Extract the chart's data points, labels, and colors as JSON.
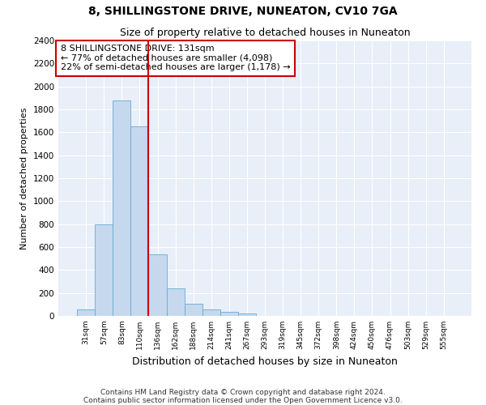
{
  "title": "8, SHILLINGSTONE DRIVE, NUNEATON, CV10 7GA",
  "subtitle": "Size of property relative to detached houses in Nuneaton",
  "xlabel": "Distribution of detached houses by size in Nuneaton",
  "ylabel": "Number of detached properties",
  "categories": [
    "31sqm",
    "57sqm",
    "83sqm",
    "110sqm",
    "136sqm",
    "162sqm",
    "188sqm",
    "214sqm",
    "241sqm",
    "267sqm",
    "293sqm",
    "319sqm",
    "345sqm",
    "372sqm",
    "398sqm",
    "424sqm",
    "450sqm",
    "476sqm",
    "503sqm",
    "529sqm",
    "555sqm"
  ],
  "values": [
    60,
    800,
    1880,
    1650,
    535,
    238,
    108,
    60,
    38,
    20,
    0,
    0,
    0,
    0,
    0,
    0,
    0,
    0,
    0,
    0,
    0
  ],
  "bar_color": "#c5d8ee",
  "bar_edgecolor": "#6aaad4",
  "vline_x_index": 4,
  "vline_color": "#cc0000",
  "annotation_line1": "8 SHILLINGSTONE DRIVE: 131sqm",
  "annotation_line2": "← 77% of detached houses are smaller (4,098)",
  "annotation_line3": "22% of semi-detached houses are larger (1,178) →",
  "annotation_box_color": "#cc0000",
  "ylim": [
    0,
    2400
  ],
  "yticks": [
    0,
    200,
    400,
    600,
    800,
    1000,
    1200,
    1400,
    1600,
    1800,
    2000,
    2200,
    2400
  ],
  "background_color": "#e8eff8",
  "footer_line1": "Contains HM Land Registry data © Crown copyright and database right 2024.",
  "footer_line2": "Contains public sector information licensed under the Open Government Licence v3.0.",
  "title_fontsize": 10,
  "subtitle_fontsize": 9,
  "ylabel_fontsize": 8,
  "xlabel_fontsize": 9,
  "annotation_fontsize": 8,
  "footer_fontsize": 6.5,
  "ytick_fontsize": 7.5,
  "xtick_fontsize": 6.5
}
